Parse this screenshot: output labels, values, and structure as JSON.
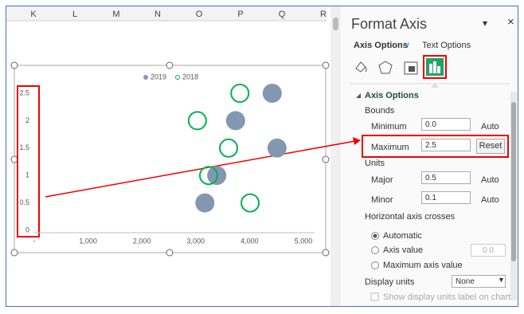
{
  "sheet": {
    "columns": [
      "K",
      "L",
      "M",
      "N",
      "O",
      "P",
      "Q",
      "R"
    ]
  },
  "chart_data": {
    "type": "scatter",
    "series": [
      {
        "name": "2019",
        "color": "#8497b0",
        "marker": "filled",
        "x": [
          4420,
          3740,
          4510,
          3390,
          3170
        ],
        "values": [
          2.5,
          2,
          1.5,
          1,
          0.5
        ]
      },
      {
        "name": "2018",
        "color": "#00b050",
        "marker": "open",
        "x": [
          3820,
          3030,
          3610,
          3240,
          4010
        ],
        "values": [
          2.5,
          2,
          1.5,
          1,
          0.5
        ]
      }
    ],
    "xlim": [
      0,
      5000
    ],
    "ylim": [
      0,
      2.5
    ],
    "xticks": [
      {
        "value": 0,
        "label": "-"
      },
      {
        "value": 1000,
        "label": "1,000"
      },
      {
        "value": 2000,
        "label": "2,000"
      },
      {
        "value": 3000,
        "label": "3,000"
      },
      {
        "value": 4000,
        "label": "4,000"
      },
      {
        "value": 5000,
        "label": "5,000"
      }
    ],
    "yticks": [
      0,
      0.5,
      1,
      1.5,
      2,
      2.5
    ],
    "legend": "top"
  },
  "pane": {
    "title": "Format Axis",
    "tabs": [
      "Axis Options",
      "Text Options"
    ],
    "section": "Axis Options",
    "bounds": "Bounds",
    "minimum": {
      "label": "Minimum",
      "value": "0.0",
      "state": "Auto"
    },
    "maximum": {
      "label": "Maximum",
      "value": "2.5",
      "state": "Reset"
    },
    "units": "Units",
    "major": {
      "label": "Major",
      "value": "0.5",
      "state": "Auto"
    },
    "minor": {
      "label": "Minor",
      "value": "0.1",
      "state": "Auto"
    },
    "crosses": "Horizontal axis crosses",
    "options": [
      "Automatic",
      "Axis value",
      "Maximum axis value"
    ],
    "axis_value": "0.0",
    "display_units": "Display units",
    "display_units_value": "None",
    "show_label": "Show display units label on chart"
  }
}
